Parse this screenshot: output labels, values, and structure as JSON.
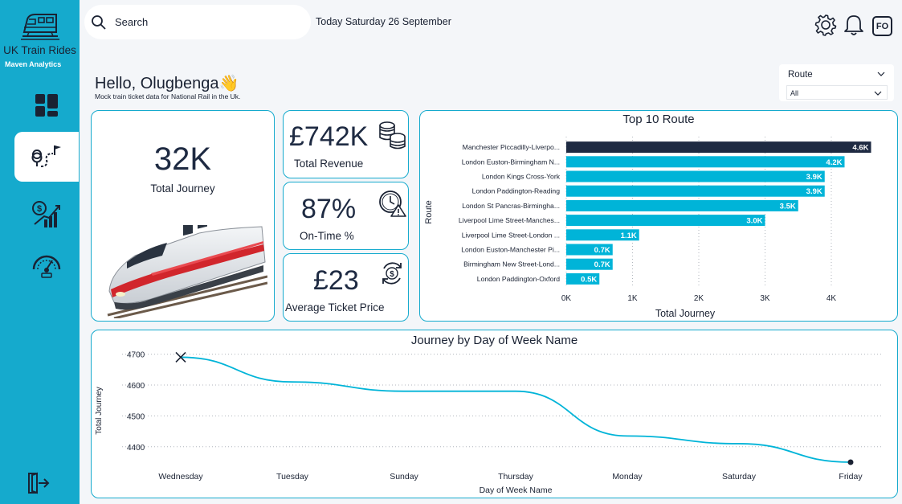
{
  "brand": {
    "title": "UK Train Rides",
    "subtitle": "Maven Analytics"
  },
  "nav": {
    "items": [
      "dashboard",
      "route",
      "revenue",
      "performance"
    ],
    "active": "route"
  },
  "search": {
    "placeholder": "Search"
  },
  "header": {
    "date": "Today Saturday 26 September",
    "avatar_initials": "FO"
  },
  "greeting": {
    "title": "Hello, Olugbenga",
    "emoji": "👋",
    "subtitle": "Mock train ticket data for National Rail in the Uk."
  },
  "filter": {
    "title": "Route",
    "value": "All"
  },
  "kpis": {
    "journeys": {
      "value": "32K",
      "label": "Total Journey"
    },
    "revenue": {
      "value": "£742K",
      "label": "Total Revenue"
    },
    "ontime": {
      "value": "87%",
      "label": "On-Time %"
    },
    "ticket": {
      "value": "£23",
      "label": "Average Ticket Price"
    }
  },
  "colors": {
    "accent": "#15aacd",
    "dark": "#1e2a42",
    "bar": "#00b4d8",
    "highlight": "#1e2a42"
  },
  "chart_data": [
    {
      "type": "bar",
      "orientation": "horizontal",
      "title": "Top 10 Route",
      "xlabel": "Total Journey",
      "ylabel": "Route",
      "xlim": [
        0,
        4800
      ],
      "ticks": [
        0,
        1000,
        2000,
        3000,
        4000
      ],
      "tick_labels": [
        "0K",
        "1K",
        "2K",
        "3K",
        "4K"
      ],
      "categories": [
        "Manchester Piccadilly-Liverpo...",
        "London Euston-Birmingham N...",
        "London Kings Cross-York",
        "London Paddington-Reading",
        "London St Pancras-Birmingha...",
        "Liverpool Lime Street-Manches...",
        "Liverpool Lime Street-London ...",
        "London Euston-Manchester Pi...",
        "Birmingham New Street-Lond...",
        "London Paddington-Oxford"
      ],
      "values": [
        4600,
        4200,
        3900,
        3900,
        3500,
        3000,
        1100,
        700,
        700,
        500
      ],
      "value_labels": [
        "4.6K",
        "4.2K",
        "3.9K",
        "3.9K",
        "3.5K",
        "3.0K",
        "1.1K",
        "0.7K",
        "0.7K",
        "0.5K"
      ],
      "highlighted_index": 0
    },
    {
      "type": "line",
      "title": "Journey by Day of Week Name",
      "xlabel": "Day of Week Name",
      "ylabel": "Total Journey",
      "categories": [
        "Wednesday",
        "Tuesday",
        "Sunday",
        "Thursday",
        "Monday",
        "Saturday",
        "Friday"
      ],
      "values": [
        4690,
        4610,
        4580,
        4580,
        4435,
        4410,
        4350
      ],
      "yticks": [
        4400,
        4500,
        4600,
        4700
      ],
      "ylim": [
        4350,
        4725
      ]
    }
  ]
}
